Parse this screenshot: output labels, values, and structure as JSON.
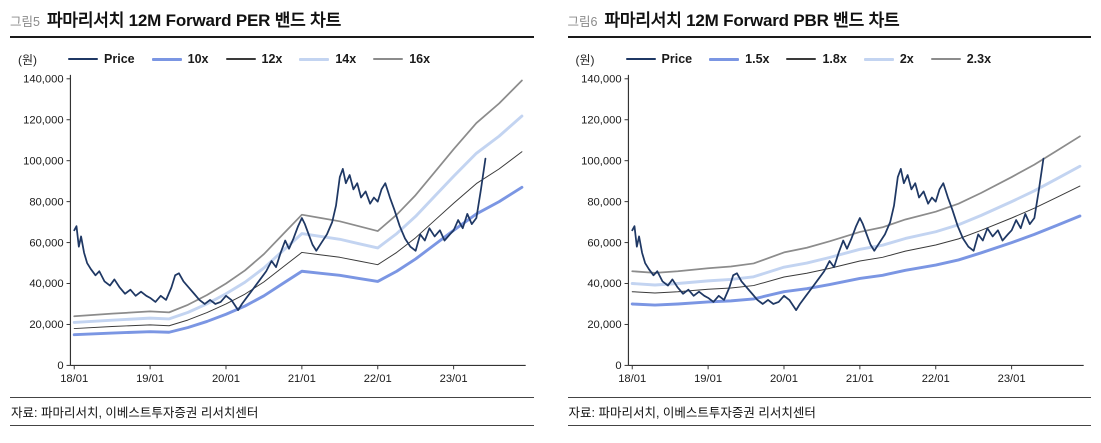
{
  "figures": [
    {
      "label": "그림5",
      "title": "파마리서치  12M Forward PER  밴드 차트",
      "unit": "(원)",
      "source": "자료: 파마리서치, 이베스트투자증권 리서치센터"
    },
    {
      "label": "그림6",
      "title": "파마리서치  12M Forward PBR  밴드 차트",
      "unit": "(원)",
      "source": "자료: 파마리서치, 이베스트투자증권 리서치센터"
    }
  ],
  "chart_data": [
    {
      "type": "line",
      "title": "파마리서치 12M Forward PER 밴드 차트",
      "xlabel": "",
      "ylabel": "(원)",
      "ylim": [
        0,
        140000
      ],
      "ytick_step": 20000,
      "xlim": [
        2017.95,
        2023.95
      ],
      "grid": false,
      "legend_position": "top",
      "xticks": [
        {
          "v": 2018,
          "label": "18/01"
        },
        {
          "v": 2019,
          "label": "19/01"
        },
        {
          "v": 2020,
          "label": "20/01"
        },
        {
          "v": 2021,
          "label": "21/01"
        },
        {
          "v": 2022,
          "label": "22/01"
        },
        {
          "v": 2023,
          "label": "23/01"
        }
      ],
      "series": [
        {
          "name": "Price",
          "color": "#1F3864",
          "width": 1.8,
          "x": [
            2018.0,
            2018.03,
            2018.06,
            2018.09,
            2018.13,
            2018.17,
            2018.22,
            2018.28,
            2018.33,
            2018.4,
            2018.47,
            2018.53,
            2018.6,
            2018.67,
            2018.74,
            2018.81,
            2018.88,
            2018.95,
            2019.0,
            2019.07,
            2019.14,
            2019.21,
            2019.28,
            2019.33,
            2019.38,
            2019.44,
            2019.51,
            2019.58,
            2019.65,
            2019.72,
            2019.79,
            2019.86,
            2019.93,
            2020.0,
            2020.07,
            2020.16,
            2020.21,
            2020.29,
            2020.37,
            2020.45,
            2020.53,
            2020.6,
            2020.66,
            2020.72,
            2020.78,
            2020.83,
            2020.89,
            2020.95,
            2021.0,
            2021.04,
            2021.09,
            2021.14,
            2021.19,
            2021.26,
            2021.33,
            2021.4,
            2021.45,
            2021.5,
            2021.54,
            2021.58,
            2021.63,
            2021.68,
            2021.73,
            2021.78,
            2021.84,
            2021.9,
            2021.95,
            2022.0,
            2022.05,
            2022.1,
            2022.16,
            2022.22,
            2022.29,
            2022.36,
            2022.43,
            2022.5,
            2022.56,
            2022.62,
            2022.68,
            2022.75,
            2022.82,
            2022.88,
            2022.95,
            2023.0,
            2023.06,
            2023.12,
            2023.18,
            2023.24,
            2023.3,
            2023.36,
            2023.42
          ],
          "y": [
            66000,
            68000,
            58000,
            63000,
            55000,
            50000,
            47000,
            44000,
            46000,
            41000,
            39000,
            42000,
            38000,
            35000,
            37000,
            34000,
            36000,
            34000,
            33000,
            31000,
            34000,
            32000,
            38000,
            44000,
            45000,
            41000,
            38000,
            35000,
            32000,
            30000,
            32000,
            30000,
            31000,
            34000,
            32000,
            27000,
            30000,
            34000,
            38000,
            42000,
            46000,
            51000,
            48000,
            55000,
            61000,
            57000,
            62000,
            68000,
            72000,
            69000,
            64000,
            59000,
            56000,
            60000,
            64000,
            70000,
            78000,
            92000,
            96000,
            89000,
            93000,
            86000,
            89000,
            82000,
            85000,
            79000,
            82000,
            80000,
            86000,
            89000,
            82000,
            76000,
            68000,
            62000,
            58000,
            56000,
            64000,
            61000,
            67000,
            63000,
            66000,
            61000,
            64000,
            66000,
            71000,
            67000,
            74000,
            69000,
            72000,
            86000,
            101000
          ]
        },
        {
          "name": "10x",
          "color": "#7B96E3",
          "width": 3,
          "x": [
            2018.0,
            2018.5,
            2019.0,
            2019.25,
            2019.5,
            2019.75,
            2020.0,
            2020.25,
            2020.5,
            2020.75,
            2021.0,
            2021.25,
            2021.5,
            2021.75,
            2022.0,
            2022.25,
            2022.5,
            2022.75,
            2023.0,
            2023.3,
            2023.6,
            2023.9
          ],
          "y": [
            15000,
            15800,
            16500,
            16200,
            18500,
            21500,
            25000,
            29000,
            34000,
            40000,
            46000,
            45000,
            44000,
            42500,
            41000,
            46000,
            52000,
            59000,
            66000,
            74000,
            80000,
            87000
          ]
        },
        {
          "name": "12x",
          "color": "#3A3A3A",
          "width": 1,
          "x": [
            2018.0,
            2018.5,
            2019.0,
            2019.25,
            2019.5,
            2019.75,
            2020.0,
            2020.25,
            2020.5,
            2020.75,
            2021.0,
            2021.25,
            2021.5,
            2021.75,
            2022.0,
            2022.25,
            2022.5,
            2022.75,
            2023.0,
            2023.3,
            2023.6,
            2023.9
          ],
          "y": [
            18000,
            19000,
            19800,
            19400,
            22200,
            25800,
            30000,
            34800,
            40800,
            48000,
            55200,
            54000,
            52800,
            51000,
            49200,
            55200,
            62400,
            70800,
            79200,
            88800,
            96000,
            104400
          ]
        },
        {
          "name": "14x",
          "color": "#C3D4F1",
          "width": 3,
          "x": [
            2018.0,
            2018.5,
            2019.0,
            2019.25,
            2019.5,
            2019.75,
            2020.0,
            2020.25,
            2020.5,
            2020.75,
            2021.0,
            2021.25,
            2021.5,
            2021.75,
            2022.0,
            2022.25,
            2022.5,
            2022.75,
            2023.0,
            2023.3,
            2023.6,
            2023.9
          ],
          "y": [
            21000,
            22100,
            23100,
            22700,
            25900,
            30100,
            35000,
            40600,
            47600,
            56000,
            64400,
            63000,
            61600,
            59500,
            57400,
            64400,
            72800,
            82600,
            92400,
            103600,
            112000,
            121800
          ]
        },
        {
          "name": "16x",
          "color": "#8C8C8C",
          "width": 1.8,
          "x": [
            2018.0,
            2018.5,
            2019.0,
            2019.25,
            2019.5,
            2019.75,
            2020.0,
            2020.25,
            2020.5,
            2020.75,
            2021.0,
            2021.25,
            2021.5,
            2021.75,
            2022.0,
            2022.25,
            2022.5,
            2022.75,
            2023.0,
            2023.3,
            2023.6,
            2023.9
          ],
          "y": [
            24000,
            25300,
            26400,
            25900,
            29600,
            34400,
            40000,
            46400,
            54400,
            64000,
            73600,
            72000,
            70400,
            68000,
            65600,
            73600,
            83200,
            94400,
            105600,
            118400,
            128000,
            139200
          ]
        }
      ]
    },
    {
      "type": "line",
      "title": "파마리서치 12M Forward PBR 밴드 차트",
      "xlabel": "",
      "ylabel": "(원)",
      "ylim": [
        0,
        140000
      ],
      "ytick_step": 20000,
      "xlim": [
        2017.95,
        2023.95
      ],
      "grid": false,
      "legend_position": "top",
      "xticks": [
        {
          "v": 2018,
          "label": "18/01"
        },
        {
          "v": 2019,
          "label": "19/01"
        },
        {
          "v": 2020,
          "label": "20/01"
        },
        {
          "v": 2021,
          "label": "21/01"
        },
        {
          "v": 2022,
          "label": "22/01"
        },
        {
          "v": 2023,
          "label": "23/01"
        }
      ],
      "series": [
        {
          "name": "Price",
          "color": "#1F3864",
          "width": 1.8,
          "x": [
            2018.0,
            2018.03,
            2018.06,
            2018.09,
            2018.13,
            2018.17,
            2018.22,
            2018.28,
            2018.33,
            2018.4,
            2018.47,
            2018.53,
            2018.6,
            2018.67,
            2018.74,
            2018.81,
            2018.88,
            2018.95,
            2019.0,
            2019.07,
            2019.14,
            2019.21,
            2019.28,
            2019.33,
            2019.38,
            2019.44,
            2019.51,
            2019.58,
            2019.65,
            2019.72,
            2019.79,
            2019.86,
            2019.93,
            2020.0,
            2020.07,
            2020.16,
            2020.21,
            2020.29,
            2020.37,
            2020.45,
            2020.53,
            2020.6,
            2020.66,
            2020.72,
            2020.78,
            2020.83,
            2020.89,
            2020.95,
            2021.0,
            2021.04,
            2021.09,
            2021.14,
            2021.19,
            2021.26,
            2021.33,
            2021.4,
            2021.45,
            2021.5,
            2021.54,
            2021.58,
            2021.63,
            2021.68,
            2021.73,
            2021.78,
            2021.84,
            2021.9,
            2021.95,
            2022.0,
            2022.05,
            2022.1,
            2022.16,
            2022.22,
            2022.29,
            2022.36,
            2022.43,
            2022.5,
            2022.56,
            2022.62,
            2022.68,
            2022.75,
            2022.82,
            2022.88,
            2022.95,
            2023.0,
            2023.06,
            2023.12,
            2023.18,
            2023.24,
            2023.3,
            2023.36,
            2023.42
          ],
          "y": [
            66000,
            68000,
            58000,
            63000,
            55000,
            50000,
            47000,
            44000,
            46000,
            41000,
            39000,
            42000,
            38000,
            35000,
            37000,
            34000,
            36000,
            34000,
            33000,
            31000,
            34000,
            32000,
            38000,
            44000,
            45000,
            41000,
            38000,
            35000,
            32000,
            30000,
            32000,
            30000,
            31000,
            34000,
            32000,
            27000,
            30000,
            34000,
            38000,
            42000,
            46000,
            51000,
            48000,
            55000,
            61000,
            57000,
            62000,
            68000,
            72000,
            69000,
            64000,
            59000,
            56000,
            60000,
            64000,
            70000,
            78000,
            92000,
            96000,
            89000,
            93000,
            86000,
            89000,
            82000,
            85000,
            79000,
            82000,
            80000,
            86000,
            89000,
            82000,
            76000,
            68000,
            62000,
            58000,
            56000,
            64000,
            61000,
            67000,
            63000,
            66000,
            61000,
            64000,
            66000,
            71000,
            67000,
            74000,
            69000,
            72000,
            86000,
            101000
          ]
        },
        {
          "name": "1.5x",
          "color": "#7B96E3",
          "width": 3,
          "x": [
            2018.0,
            2018.3,
            2018.6,
            2019.0,
            2019.3,
            2019.6,
            2020.0,
            2020.3,
            2020.6,
            2021.0,
            2021.3,
            2021.6,
            2022.0,
            2022.3,
            2022.6,
            2023.0,
            2023.3,
            2023.6,
            2023.9
          ],
          "y": [
            30000,
            29500,
            30000,
            31000,
            31500,
            32500,
            36000,
            37500,
            39500,
            42500,
            44000,
            46500,
            49000,
            51500,
            55000,
            60000,
            64000,
            68500,
            73000
          ]
        },
        {
          "name": "1.8x",
          "color": "#3A3A3A",
          "width": 1,
          "x": [
            2018.0,
            2018.3,
            2018.6,
            2019.0,
            2019.3,
            2019.6,
            2020.0,
            2020.3,
            2020.6,
            2021.0,
            2021.3,
            2021.6,
            2022.0,
            2022.3,
            2022.6,
            2023.0,
            2023.3,
            2023.6,
            2023.9
          ],
          "y": [
            36000,
            35400,
            36000,
            37200,
            37800,
            39000,
            43200,
            45000,
            47400,
            51000,
            52800,
            55800,
            58800,
            61800,
            66000,
            72000,
            76800,
            82200,
            87600
          ]
        },
        {
          "name": "2x",
          "color": "#C3D4F1",
          "width": 3,
          "x": [
            2018.0,
            2018.3,
            2018.6,
            2019.0,
            2019.3,
            2019.6,
            2020.0,
            2020.3,
            2020.6,
            2021.0,
            2021.3,
            2021.6,
            2022.0,
            2022.3,
            2022.6,
            2023.0,
            2023.3,
            2023.6,
            2023.9
          ],
          "y": [
            40000,
            39300,
            40000,
            41300,
            42000,
            43300,
            48000,
            50000,
            52700,
            56700,
            58700,
            62000,
            65300,
            68700,
            73300,
            80000,
            85300,
            91300,
            97300
          ]
        },
        {
          "name": "2.3x",
          "color": "#8C8C8C",
          "width": 1.8,
          "x": [
            2018.0,
            2018.3,
            2018.6,
            2019.0,
            2019.3,
            2019.6,
            2020.0,
            2020.3,
            2020.6,
            2021.0,
            2021.3,
            2021.6,
            2022.0,
            2022.3,
            2022.6,
            2023.0,
            2023.3,
            2023.6,
            2023.9
          ],
          "y": [
            46000,
            45200,
            46000,
            47500,
            48300,
            49800,
            55200,
            57500,
            60600,
            65200,
            67500,
            71300,
            75100,
            79000,
            84300,
            92000,
            98100,
            105000,
            111900
          ]
        }
      ]
    }
  ]
}
